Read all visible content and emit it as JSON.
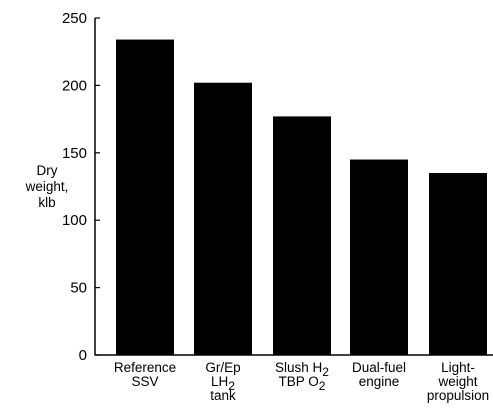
{
  "chart_data": {
    "type": "bar",
    "ylabel_lines": [
      "Dry",
      "weight,",
      "klb"
    ],
    "ylim": [
      0,
      250
    ],
    "yticks": [
      0,
      50,
      100,
      150,
      200,
      250
    ],
    "legend": "none",
    "grid": false,
    "bar_color": "#000000",
    "categories": [
      {
        "name": "Reference SSV",
        "lines": [
          [
            {
              "t": "Reference"
            }
          ],
          [
            {
              "t": "SSV"
            }
          ]
        ]
      },
      {
        "name": "Gr/Ep LH2 tank",
        "lines": [
          [
            {
              "t": "Gr/Ep"
            }
          ],
          [
            {
              "t": "LH"
            },
            {
              "t": "2",
              "sub": true
            }
          ],
          [
            {
              "t": "tank"
            }
          ]
        ]
      },
      {
        "name": "Slush H2 TBP O2",
        "lines": [
          [
            {
              "t": "Slush H"
            },
            {
              "t": "2",
              "sub": true
            }
          ],
          [
            {
              "t": "TBP O"
            },
            {
              "t": "2",
              "sub": true
            }
          ]
        ]
      },
      {
        "name": "Dual-fuel engine",
        "lines": [
          [
            {
              "t": "Dual-fuel"
            }
          ],
          [
            {
              "t": "engine"
            }
          ]
        ]
      },
      {
        "name": "Light-weight propulsion",
        "lines": [
          [
            {
              "t": "Light-"
            }
          ],
          [
            {
              "t": "weight"
            }
          ],
          [
            {
              "t": "propulsion"
            }
          ]
        ]
      }
    ],
    "values": [
      234,
      202,
      177,
      145,
      135
    ]
  }
}
